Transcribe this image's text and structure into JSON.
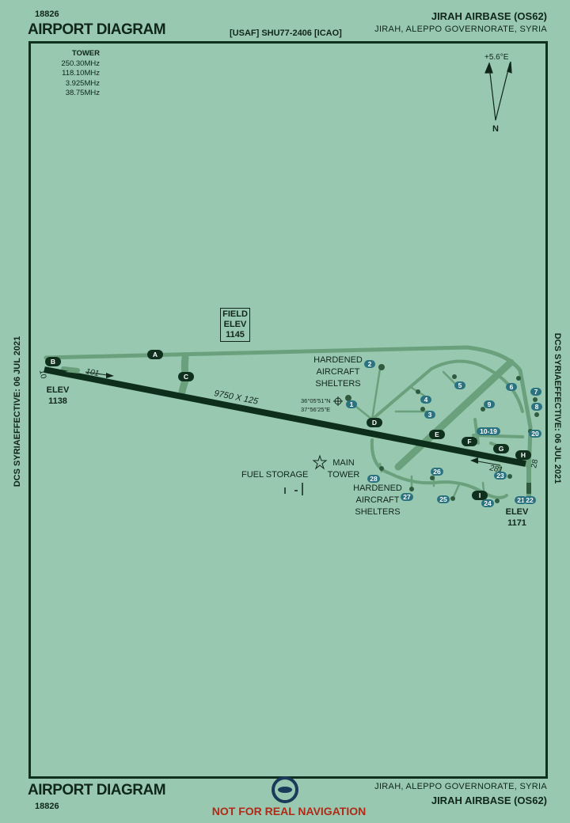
{
  "header": {
    "code": "18826",
    "title": "AIRPORT DIAGRAM",
    "source": "[USAF] SHU77-2406 [ICAO]",
    "airport_name": "JIRAH AIRBASE (OS62)",
    "location": "JIRAH, ALEPPO GOVERNORATE, SYRIA"
  },
  "tower": {
    "label": "TOWER",
    "frequencies": [
      "250.30MHz",
      "118.10MHz",
      "3.925MHz",
      "38.75MHz"
    ]
  },
  "north": {
    "variation": "+5.6°E",
    "label": "N"
  },
  "side_text": "DCS SYRIAEFFECTIVE: 06 JUL 2021",
  "field_elev": {
    "line1": "FIELD",
    "line2": "ELEV",
    "value": "1145"
  },
  "runway": {
    "west_end": "10",
    "east_end": "28",
    "dims": "9750 X 125",
    "heading_west": "101",
    "heading_east": "281",
    "elev_west_label": "ELEV",
    "elev_west": "1138",
    "elev_east_label": "ELEV",
    "elev_east": "1171"
  },
  "taxiways": [
    "A",
    "B",
    "C",
    "D",
    "E",
    "F",
    "G",
    "H",
    "I"
  ],
  "shelter_numbers": [
    "1",
    "2",
    "3",
    "4",
    "5",
    "6",
    "7",
    "8",
    "9",
    "10-19",
    "20",
    "21",
    "22",
    "23",
    "24",
    "25",
    "26",
    "27",
    "28"
  ],
  "labels": {
    "hardened_north": [
      "HARDENED",
      "AIRCRAFT",
      "SHELTERS"
    ],
    "hardened_south": [
      "HARDENED",
      "AIRCRAFT",
      "SHELTERS"
    ],
    "main_tower": [
      "MAIN",
      "TOWER"
    ],
    "fuel_storage": "FUEL STORAGE",
    "coord_lat": "36°05'51\"N",
    "coord_lon": "37°56'25\"E"
  },
  "footer": {
    "title": "AIRPORT DIAGRAM",
    "code": "18826",
    "warning": "NOT FOR REAL NAVIGATION",
    "location": "JIRAH, ALEPPO GOVERNORATE, SYRIA",
    "airport_name": "JIRAH AIRBASE (OS62)"
  },
  "colors": {
    "background": "#98c8b0",
    "taxiway": "#6aa07c",
    "runway": "#0e2e1c",
    "badge": "#2a7280",
    "taxi_badge": "#10301e",
    "warning": "#b02a18"
  }
}
